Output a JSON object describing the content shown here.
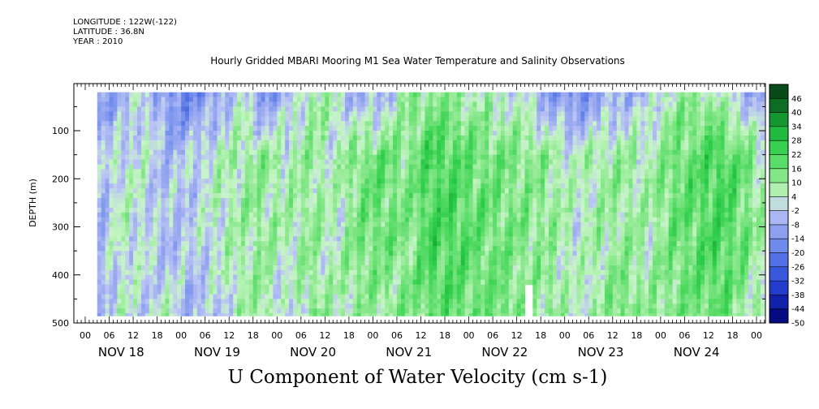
{
  "header": {
    "longitude": "LONGITUDE : 122W(-122)",
    "latitude": "LATITUDE : 36.8N",
    "year": "YEAR : 2010"
  },
  "title": "Hourly Gridded MBARI Mooring M1 Sea Water Temperature and Salinity Observations",
  "bottom_title": "U Component of Water Velocity (cm s-1)",
  "chart_data": {
    "type": "heatmap",
    "title": "Hourly Gridded MBARI Mooring M1 Sea Water Temperature and Salinity Observations",
    "xlabel": "",
    "ylabel": "DEPTH (m)",
    "ylim": [
      500,
      0
    ],
    "yticks": [
      100,
      200,
      300,
      400,
      500
    ],
    "y_reversed": true,
    "hour_tick_labels": [
      "00",
      "06",
      "12",
      "18"
    ],
    "days": [
      "NOV 18",
      "NOV 19",
      "NOV 20",
      "NOV 21",
      "NOV 22",
      "NOV 23",
      "NOV 24"
    ],
    "data_depth_range": [
      20,
      485
    ],
    "data_start_hour": 3,
    "data_end_hour": 170,
    "colorbar": {
      "levels": [
        46,
        40,
        34,
        28,
        22,
        16,
        10,
        4,
        -2,
        -8,
        -14,
        -20,
        -26,
        -32,
        -38,
        -44,
        -50
      ],
      "min": -50,
      "max": 52
    },
    "profile_samples": {
      "time_hours": [
        3,
        8,
        14,
        20,
        26,
        32,
        38,
        44,
        50,
        56,
        62,
        68,
        74,
        80,
        86,
        92,
        98,
        104,
        110,
        116,
        122,
        128,
        134,
        140,
        146,
        152,
        158,
        164,
        170
      ],
      "near_surface_u": [
        -8,
        -12,
        4,
        -14,
        -16,
        -10,
        4,
        -14,
        -6,
        10,
        4,
        -8,
        -4,
        8,
        12,
        10,
        6,
        4,
        2,
        -12,
        -14,
        -10,
        -6,
        -4,
        8,
        10,
        6,
        -4,
        -8
      ],
      "mid_depth_u": [
        -6,
        4,
        2,
        -4,
        -2,
        4,
        8,
        10,
        6,
        10,
        4,
        14,
        16,
        12,
        22,
        20,
        16,
        14,
        12,
        10,
        4,
        8,
        10,
        6,
        14,
        18,
        22,
        16,
        4
      ],
      "deep_u": [
        -4,
        4,
        -2,
        6,
        -6,
        -2,
        6,
        10,
        -4,
        12,
        6,
        10,
        8,
        12,
        16,
        18,
        14,
        16,
        8,
        10,
        4,
        8,
        16,
        10,
        12,
        14,
        18,
        10,
        2
      ]
    },
    "gap": {
      "time_hours": [
        110,
        112
      ],
      "depth_range": [
        420,
        485
      ]
    },
    "colors": {
      "negative": "#a4aef0",
      "near_zero": "#c8f0c8",
      "positive": "#20d040"
    }
  }
}
